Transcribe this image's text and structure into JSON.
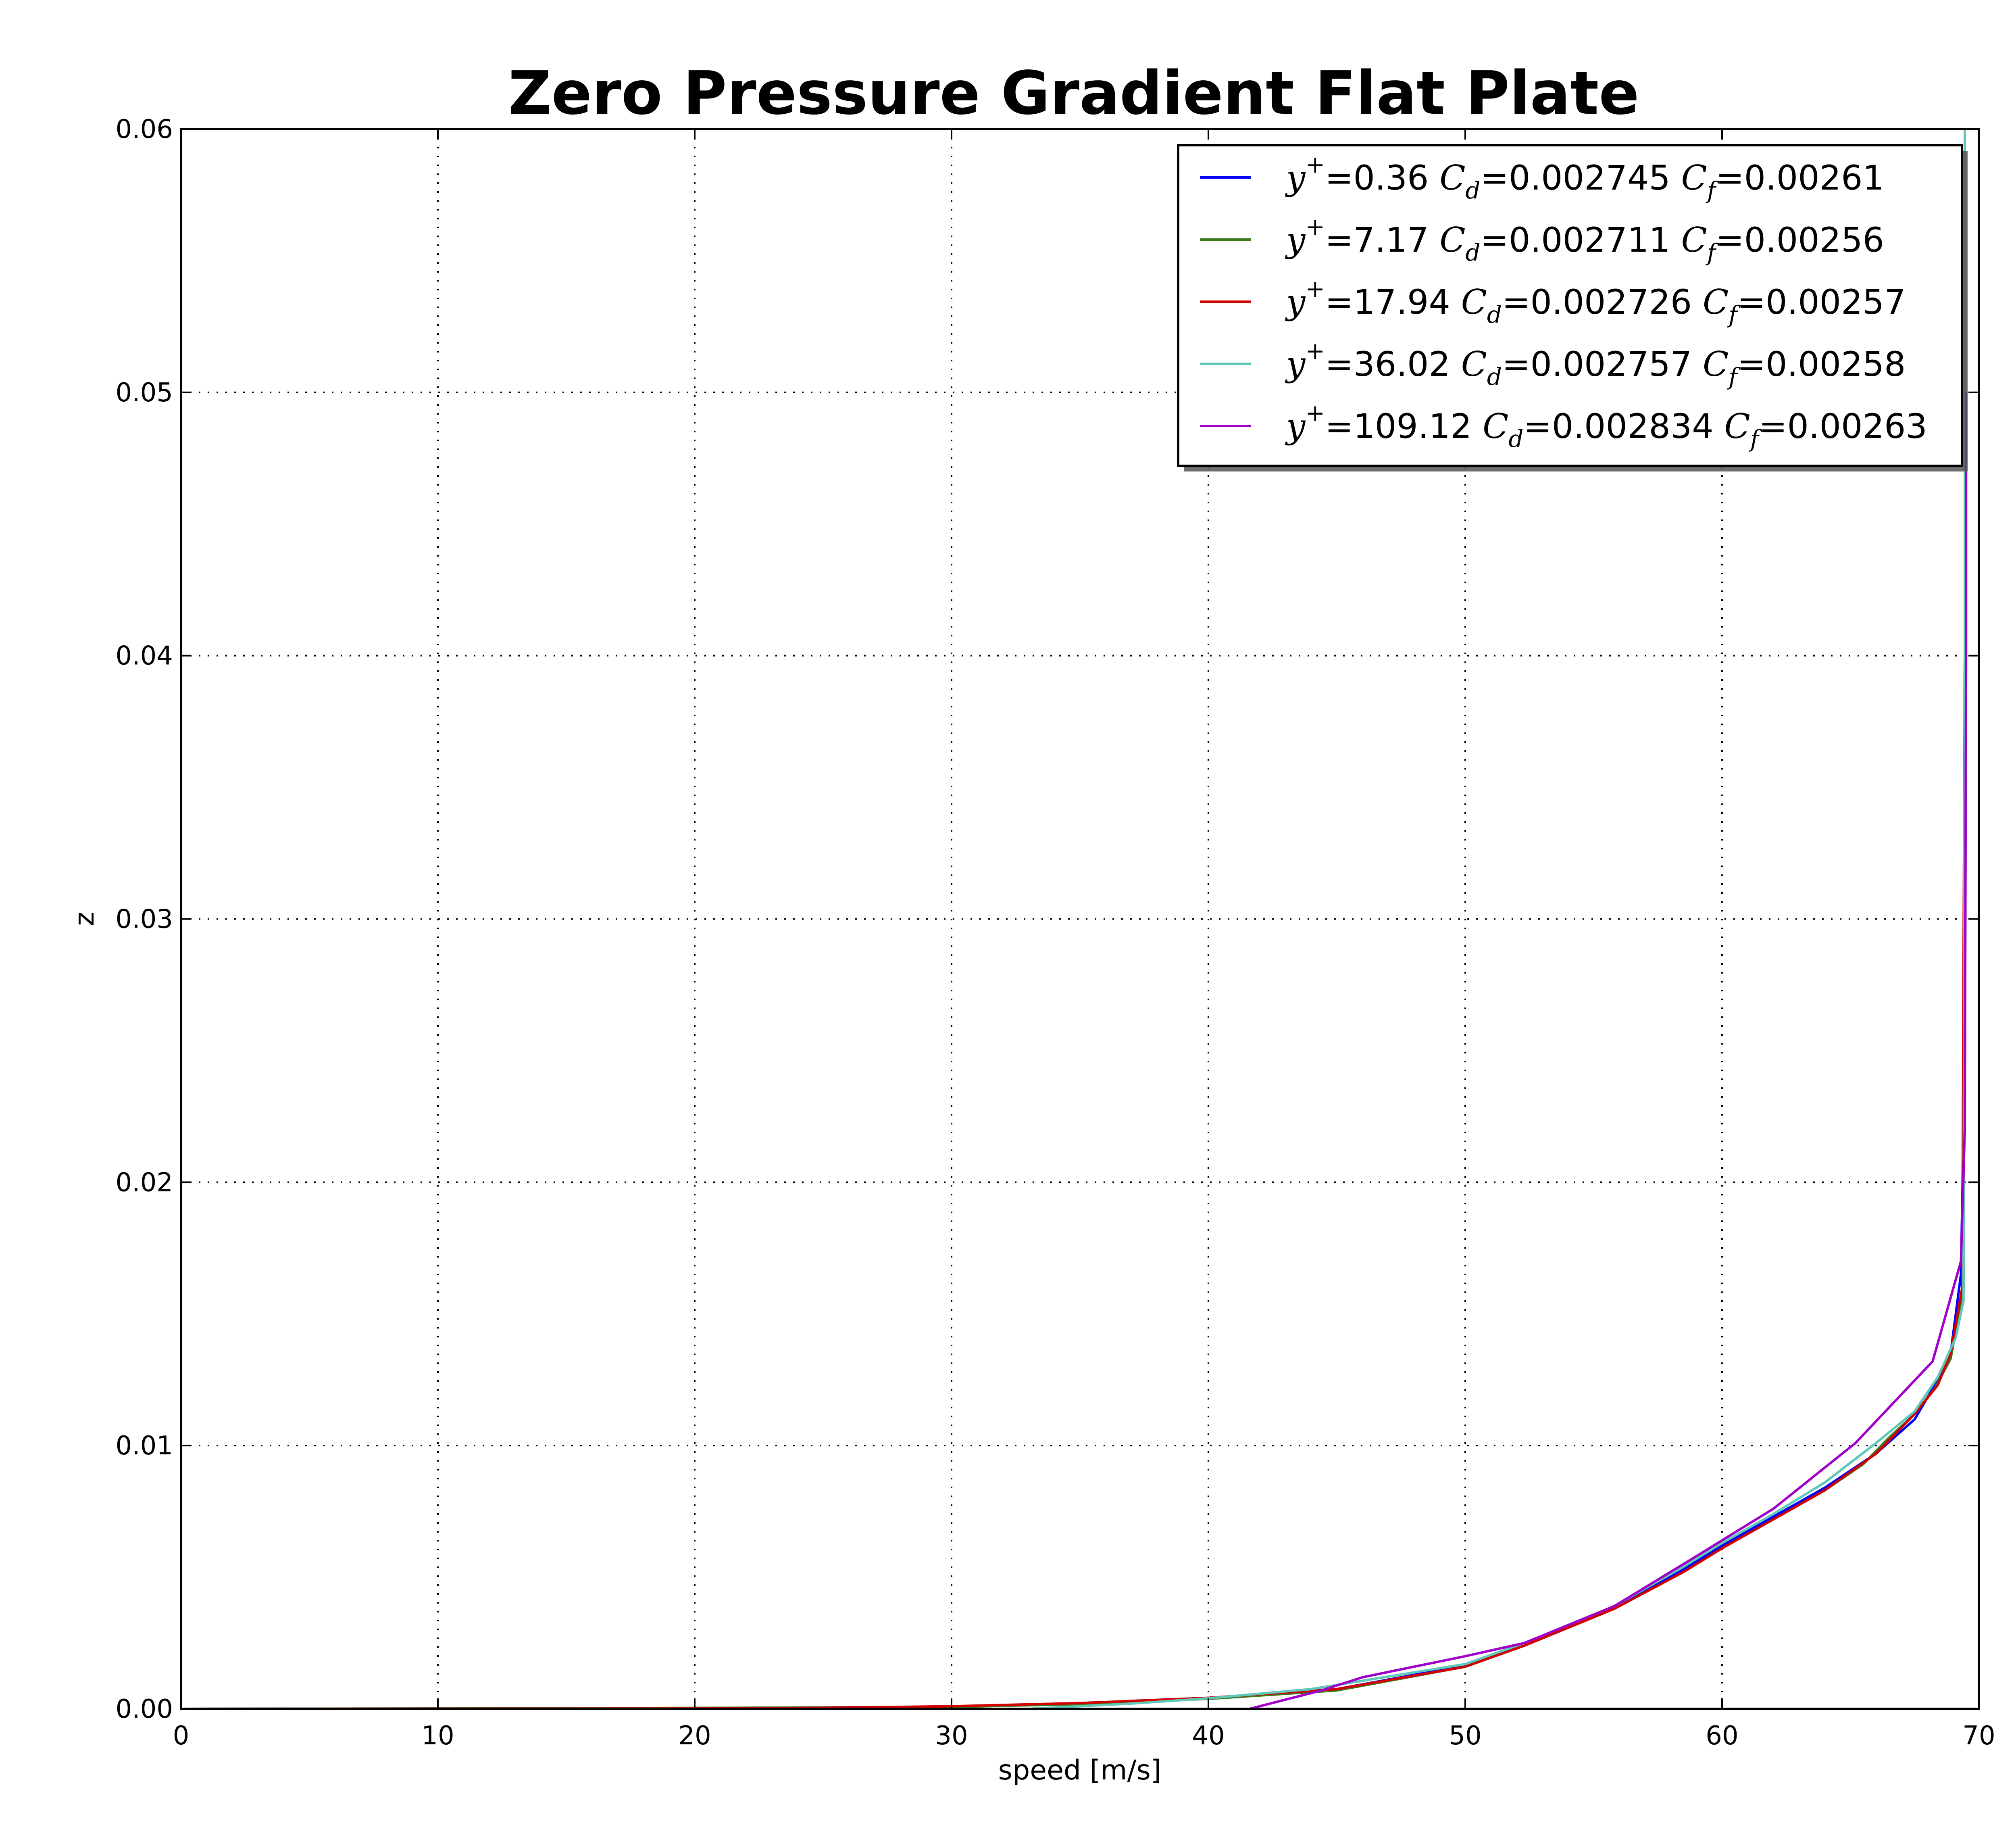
{
  "chart_data": {
    "type": "line",
    "title": "Zero Pressure Gradient Flat Plate",
    "xlabel": "speed [m/s]",
    "ylabel": "z",
    "xlim": [
      0,
      70
    ],
    "ylim": [
      0,
      0.06
    ],
    "xticks": [
      "0",
      "10",
      "20",
      "30",
      "40",
      "50",
      "60",
      "70"
    ],
    "yticks": [
      "0.00",
      "0.01",
      "0.02",
      "0.03",
      "0.04",
      "0.05",
      "0.06"
    ],
    "grid": true,
    "legend_position": "top-right",
    "series": [
      {
        "name": "y+=0.36 Cd=0.002745 Cf=0.00261",
        "legend": {
          "yplus": "=0.36",
          "cd": "=0.002745",
          "cf": "=0.00261"
        },
        "color": "#0000ff",
        "points": [
          [
            0,
            0
          ],
          [
            10,
            1e-05
          ],
          [
            20,
            3e-05
          ],
          [
            30,
            8e-05
          ],
          [
            35,
            0.00022
          ],
          [
            40,
            0.00042
          ],
          [
            45,
            0.00075
          ],
          [
            50,
            0.00165
          ],
          [
            52.3,
            0.0024
          ],
          [
            55.8,
            0.0039
          ],
          [
            58.5,
            0.0053
          ],
          [
            60,
            0.0062
          ],
          [
            62,
            0.0073
          ],
          [
            64,
            0.0084
          ],
          [
            66,
            0.0097
          ],
          [
            67.5,
            0.011
          ],
          [
            68.4,
            0.0125
          ],
          [
            68.9,
            0.0135
          ],
          [
            69.3,
            0.0165
          ],
          [
            69.4,
            0.022
          ],
          [
            69.45,
            0.04
          ],
          [
            69.45,
            0.06
          ]
        ]
      },
      {
        "name": "y+=7.17 Cd=0.002711 Cf=0.00256",
        "legend": {
          "yplus": "=7.17",
          "cd": "=0.002711",
          "cf": "=0.00256"
        },
        "color": "#3a7a1a",
        "points": [
          [
            0,
            0
          ],
          [
            15,
            2e-05
          ],
          [
            25,
            5e-05
          ],
          [
            30,
            7e-05
          ],
          [
            35,
            0.00018
          ],
          [
            40,
            0.00038
          ],
          [
            45,
            0.0007
          ],
          [
            50,
            0.0016
          ],
          [
            52.3,
            0.0024
          ],
          [
            55.8,
            0.0038
          ],
          [
            58.5,
            0.0052
          ],
          [
            60,
            0.0061
          ],
          [
            62,
            0.0072
          ],
          [
            64,
            0.0083
          ],
          [
            65.5,
            0.0093
          ],
          [
            66.5,
            0.0103
          ],
          [
            67.5,
            0.0112
          ],
          [
            68.3,
            0.0122
          ],
          [
            68.9,
            0.0133
          ],
          [
            69.4,
            0.016
          ],
          [
            69.45,
            0.04
          ],
          [
            69.45,
            0.06
          ]
        ]
      },
      {
        "name": "y+=17.94 Cd=0.002726 Cf=0.00257",
        "legend": {
          "yplus": "=17.94",
          "cd": "=0.002726",
          "cf": "=0.00257"
        },
        "color": "#d40000",
        "points": [
          [
            0,
            0
          ],
          [
            20,
            1e-05
          ],
          [
            25,
            4e-05
          ],
          [
            30,
            0.0001
          ],
          [
            35,
            0.00022
          ],
          [
            40,
            0.00042
          ],
          [
            45,
            0.00075
          ],
          [
            50,
            0.0016
          ],
          [
            52.3,
            0.0024
          ],
          [
            55.8,
            0.0038
          ],
          [
            58.5,
            0.0052
          ],
          [
            60,
            0.0061
          ],
          [
            62,
            0.0072
          ],
          [
            64,
            0.0083
          ],
          [
            66,
            0.0097
          ],
          [
            67.5,
            0.0112
          ],
          [
            68.4,
            0.0123
          ],
          [
            68.9,
            0.0135
          ],
          [
            69.35,
            0.016
          ],
          [
            69.45,
            0.04
          ],
          [
            69.45,
            0.06
          ]
        ]
      },
      {
        "name": "y+=36.02 Cd=0.002757 Cf=0.00258",
        "legend": {
          "yplus": "=36.02",
          "cd": "=0.002757",
          "cf": "=0.00258"
        },
        "color": "#5fc8b8",
        "points": [
          [
            33,
            0
          ],
          [
            37,
            0.0002
          ],
          [
            40,
            0.0004
          ],
          [
            44,
            0.00075
          ],
          [
            50,
            0.0017
          ],
          [
            52.3,
            0.0025
          ],
          [
            55.8,
            0.0039
          ],
          [
            58.5,
            0.0054
          ],
          [
            60,
            0.0063
          ],
          [
            62,
            0.0074
          ],
          [
            64,
            0.0086
          ],
          [
            66,
            0.0101
          ],
          [
            67.5,
            0.0113
          ],
          [
            68.4,
            0.0126
          ],
          [
            69.1,
            0.0141
          ],
          [
            69.4,
            0.0155
          ],
          [
            69.45,
            0.04
          ],
          [
            69.45,
            0.06
          ]
        ]
      },
      {
        "name": "y+=109.12 Cd=0.002834 Cf=0.00263",
        "legend": {
          "yplus": "=109.12",
          "cd": "=0.002834",
          "cf": "=0.00263"
        },
        "color": "#a000c8",
        "points": [
          [
            41.6,
            0
          ],
          [
            44.4,
            0.0007
          ],
          [
            46,
            0.0012
          ],
          [
            50,
            0.002
          ],
          [
            52.3,
            0.0025
          ],
          [
            55.8,
            0.0039
          ],
          [
            58.5,
            0.0055
          ],
          [
            60,
            0.0064
          ],
          [
            62,
            0.0076
          ],
          [
            65.2,
            0.0101
          ],
          [
            68.2,
            0.0132
          ],
          [
            69.3,
            0.017
          ],
          [
            69.45,
            0.022
          ],
          [
            69.5,
            0.04
          ],
          [
            69.5,
            0.05
          ]
        ]
      }
    ]
  }
}
